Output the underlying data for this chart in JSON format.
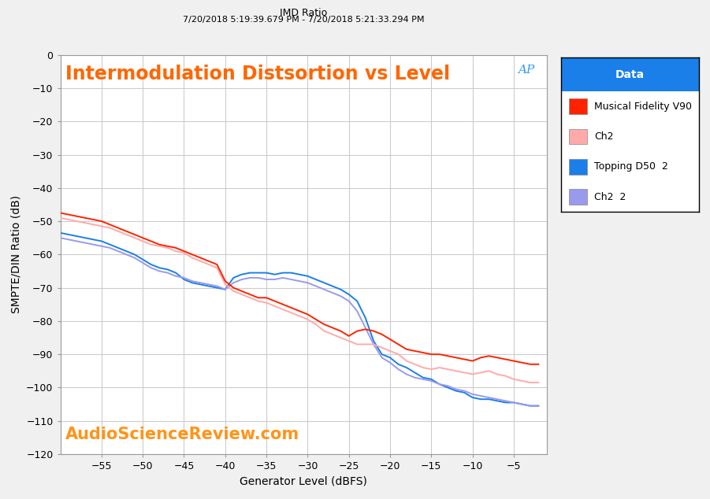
{
  "title_main": "IMD Ratio",
  "title_sub": "7/20/2018 5:19:39.679 PM - 7/20/2018 5:21:33.294 PM",
  "chart_title": "Intermodulation Distsortion vs Level",
  "xlabel": "Generator Level (dBFS)",
  "ylabel": "SMPTE/DIN Ratio (dB)",
  "xlim": [
    -60,
    -1
  ],
  "ylim": [
    -120,
    0
  ],
  "xticks": [
    -55,
    -50,
    -45,
    -40,
    -35,
    -30,
    -25,
    -20,
    -15,
    -10,
    -5
  ],
  "yticks": [
    0,
    -10,
    -20,
    -30,
    -40,
    -50,
    -60,
    -70,
    -80,
    -90,
    -100,
    -110,
    -120
  ],
  "watermark": "AudioScienceReview.com",
  "legend_title": "Data",
  "legend_entries": [
    "Musical Fidelity V90",
    "Ch2",
    "Topping D50  2",
    "Ch2  2"
  ],
  "line_colors": [
    "#ff2200",
    "#ffaaaa",
    "#1a7fe8",
    "#9999ee"
  ],
  "bg_color": "#f0f0f0",
  "plot_bg_color": "#ffffff",
  "grid_color": "#cccccc",
  "ap_logo_color": "#3399ff",
  "legend_header_bg": "#1a7fe8",
  "legend_header_color": "#ffffff",
  "x_mf_v90": [
    -60,
    -59,
    -58,
    -57,
    -56,
    -55,
    -54,
    -53,
    -52,
    -51,
    -50,
    -49,
    -48,
    -47,
    -46,
    -45,
    -44,
    -43,
    -42,
    -41,
    -40,
    -39,
    -38,
    -37,
    -36,
    -35,
    -34,
    -33,
    -32,
    -31,
    -30,
    -29,
    -28,
    -27,
    -26,
    -25,
    -24,
    -23,
    -22,
    -21,
    -20,
    -19,
    -18,
    -17,
    -16,
    -15,
    -14,
    -13,
    -12,
    -11,
    -10,
    -9,
    -8,
    -7,
    -6,
    -5,
    -4,
    -3,
    -2
  ],
  "y_mf_v90": [
    -47.5,
    -48,
    -48.5,
    -49,
    -49.5,
    -50,
    -51,
    -52,
    -53,
    -54,
    -55,
    -56,
    -57,
    -57.5,
    -58,
    -59,
    -60,
    -61,
    -62,
    -63,
    -68,
    -70,
    -71,
    -72,
    -73,
    -73,
    -74,
    -75,
    -76,
    -77,
    -78,
    -79.5,
    -81,
    -82,
    -83,
    -84.5,
    -83,
    -82.5,
    -83,
    -84,
    -85.5,
    -87,
    -88.5,
    -89,
    -89.5,
    -90,
    -90,
    -90.5,
    -91,
    -91.5,
    -92,
    -91,
    -90.5,
    -91,
    -91.5,
    -92,
    -92.5,
    -93,
    -93
  ],
  "x_ch2": [
    -60,
    -59,
    -58,
    -57,
    -56,
    -55,
    -54,
    -53,
    -52,
    -51,
    -50,
    -49,
    -48,
    -47,
    -46,
    -45,
    -44,
    -43,
    -42,
    -41,
    -40,
    -39,
    -38,
    -37,
    -36,
    -35,
    -34,
    -33,
    -32,
    -31,
    -30,
    -29,
    -28,
    -27,
    -26,
    -25,
    -24,
    -23,
    -22,
    -21,
    -20,
    -19,
    -18,
    -17,
    -16,
    -15,
    -14,
    -13,
    -12,
    -11,
    -10,
    -9,
    -8,
    -7,
    -6,
    -5,
    -4,
    -3,
    -2
  ],
  "y_ch2": [
    -49,
    -49.5,
    -50,
    -50.5,
    -51,
    -51.5,
    -52,
    -53,
    -54,
    -55,
    -56,
    -57,
    -57.5,
    -58,
    -59,
    -59.5,
    -61,
    -62,
    -63,
    -64,
    -69,
    -71,
    -72,
    -73,
    -74,
    -74.5,
    -75.5,
    -76.5,
    -77.5,
    -78.5,
    -79.5,
    -81,
    -83,
    -84,
    -85,
    -86,
    -87,
    -87,
    -87,
    -88,
    -89,
    -90,
    -92,
    -93,
    -94,
    -94.5,
    -94,
    -94.5,
    -95,
    -95.5,
    -96,
    -95.5,
    -95,
    -96,
    -96.5,
    -97.5,
    -98,
    -98.5,
    -98.5
  ],
  "x_topping": [
    -60,
    -59,
    -58,
    -57,
    -56,
    -55,
    -54,
    -53,
    -52,
    -51,
    -50,
    -49,
    -48,
    -47,
    -46,
    -45,
    -44,
    -43,
    -42,
    -41,
    -40,
    -39,
    -38,
    -37,
    -36,
    -35,
    -34,
    -33,
    -32,
    -31,
    -30,
    -29,
    -28,
    -27,
    -26,
    -25,
    -24,
    -23,
    -22,
    -21,
    -20,
    -19,
    -18,
    -17,
    -16,
    -15,
    -14,
    -13,
    -12,
    -11,
    -10,
    -9,
    -8,
    -7,
    -6,
    -5,
    -4,
    -3,
    -2
  ],
  "y_topping": [
    -53.5,
    -54,
    -54.5,
    -55,
    -55.5,
    -56,
    -57,
    -58,
    -59,
    -60,
    -61.5,
    -63,
    -64,
    -64.5,
    -65.5,
    -67.5,
    -68.5,
    -69,
    -69.5,
    -70,
    -70.5,
    -67,
    -66,
    -65.5,
    -65.5,
    -65.5,
    -66,
    -65.5,
    -65.5,
    -66,
    -66.5,
    -67.5,
    -68.5,
    -69.5,
    -70.5,
    -72,
    -74,
    -79,
    -86,
    -90,
    -91,
    -93,
    -94,
    -95.5,
    -97,
    -97.5,
    -99,
    -100,
    -101,
    -101.5,
    -103,
    -103.5,
    -103.5,
    -104,
    -104.5,
    -104.5,
    -105,
    -105.5,
    -105.5
  ],
  "x_ch2_2": [
    -60,
    -59,
    -58,
    -57,
    -56,
    -55,
    -54,
    -53,
    -52,
    -51,
    -50,
    -49,
    -48,
    -47,
    -46,
    -45,
    -44,
    -43,
    -42,
    -41,
    -40,
    -39,
    -38,
    -37,
    -36,
    -35,
    -34,
    -33,
    -32,
    -31,
    -30,
    -29,
    -28,
    -27,
    -26,
    -25,
    -24,
    -23,
    -22,
    -21,
    -20,
    -19,
    -18,
    -17,
    -16,
    -15,
    -14,
    -13,
    -12,
    -11,
    -10,
    -9,
    -8,
    -7,
    -6,
    -5,
    -4,
    -3,
    -2
  ],
  "y_ch2_2": [
    -55,
    -55.5,
    -56,
    -56.5,
    -57,
    -57.5,
    -58,
    -59,
    -60,
    -61,
    -62.5,
    -64,
    -65,
    -65.5,
    -66.5,
    -67,
    -68,
    -68.5,
    -69,
    -69.5,
    -70.5,
    -68.5,
    -67.5,
    -67,
    -67,
    -67.5,
    -67.5,
    -67,
    -67.5,
    -68,
    -68.5,
    -69.5,
    -70.5,
    -71.5,
    -72.5,
    -74,
    -77,
    -82,
    -87,
    -91,
    -92.5,
    -94.5,
    -96,
    -97,
    -97.5,
    -98,
    -99,
    -99.5,
    -100.5,
    -101,
    -102,
    -102.5,
    -103,
    -103.5,
    -104,
    -104.5,
    -105,
    -105.5,
    -105.5
  ]
}
